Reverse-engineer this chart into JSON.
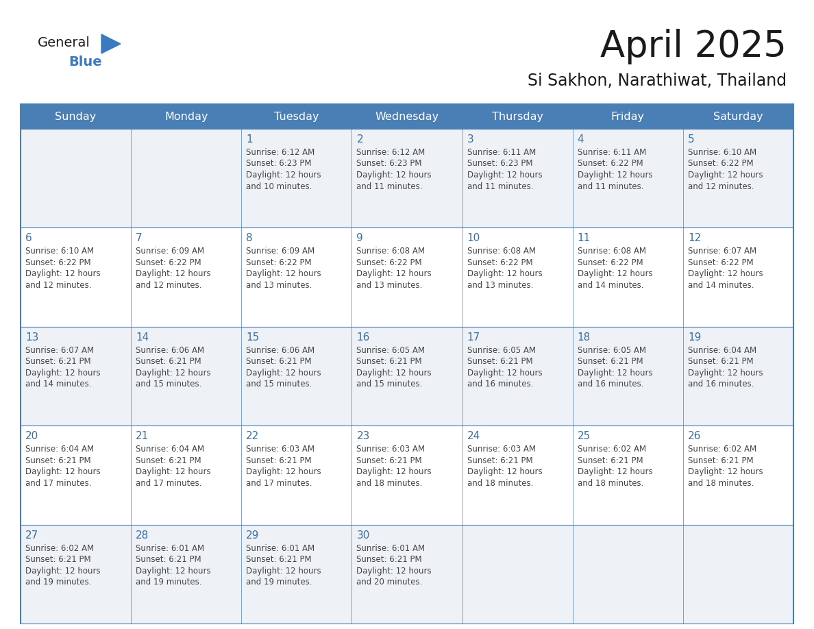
{
  "title": "April 2025",
  "subtitle": "Si Sakhon, Narathiwat, Thailand",
  "header_bg": "#4a7fb5",
  "header_text_color": "#ffffff",
  "cell_bg_odd": "#eef2f7",
  "cell_bg_even": "#ffffff",
  "day_number_color": "#3a6fa0",
  "cell_text_color": "#444444",
  "border_color": "#4a7fb5",
  "line_color": "#4a7fb5",
  "days_of_week": [
    "Sunday",
    "Monday",
    "Tuesday",
    "Wednesday",
    "Thursday",
    "Friday",
    "Saturday"
  ],
  "logo_general_color": "#1a1a1a",
  "logo_blue_color": "#3a7abf",
  "logo_triangle_color": "#3a7abf",
  "weeks": [
    [
      {
        "day": "",
        "lines": []
      },
      {
        "day": "",
        "lines": []
      },
      {
        "day": "1",
        "lines": [
          "Sunrise: 6:12 AM",
          "Sunset: 6:23 PM",
          "Daylight: 12 hours",
          "and 10 minutes."
        ]
      },
      {
        "day": "2",
        "lines": [
          "Sunrise: 6:12 AM",
          "Sunset: 6:23 PM",
          "Daylight: 12 hours",
          "and 11 minutes."
        ]
      },
      {
        "day": "3",
        "lines": [
          "Sunrise: 6:11 AM",
          "Sunset: 6:23 PM",
          "Daylight: 12 hours",
          "and 11 minutes."
        ]
      },
      {
        "day": "4",
        "lines": [
          "Sunrise: 6:11 AM",
          "Sunset: 6:22 PM",
          "Daylight: 12 hours",
          "and 11 minutes."
        ]
      },
      {
        "day": "5",
        "lines": [
          "Sunrise: 6:10 AM",
          "Sunset: 6:22 PM",
          "Daylight: 12 hours",
          "and 12 minutes."
        ]
      }
    ],
    [
      {
        "day": "6",
        "lines": [
          "Sunrise: 6:10 AM",
          "Sunset: 6:22 PM",
          "Daylight: 12 hours",
          "and 12 minutes."
        ]
      },
      {
        "day": "7",
        "lines": [
          "Sunrise: 6:09 AM",
          "Sunset: 6:22 PM",
          "Daylight: 12 hours",
          "and 12 minutes."
        ]
      },
      {
        "day": "8",
        "lines": [
          "Sunrise: 6:09 AM",
          "Sunset: 6:22 PM",
          "Daylight: 12 hours",
          "and 13 minutes."
        ]
      },
      {
        "day": "9",
        "lines": [
          "Sunrise: 6:08 AM",
          "Sunset: 6:22 PM",
          "Daylight: 12 hours",
          "and 13 minutes."
        ]
      },
      {
        "day": "10",
        "lines": [
          "Sunrise: 6:08 AM",
          "Sunset: 6:22 PM",
          "Daylight: 12 hours",
          "and 13 minutes."
        ]
      },
      {
        "day": "11",
        "lines": [
          "Sunrise: 6:08 AM",
          "Sunset: 6:22 PM",
          "Daylight: 12 hours",
          "and 14 minutes."
        ]
      },
      {
        "day": "12",
        "lines": [
          "Sunrise: 6:07 AM",
          "Sunset: 6:22 PM",
          "Daylight: 12 hours",
          "and 14 minutes."
        ]
      }
    ],
    [
      {
        "day": "13",
        "lines": [
          "Sunrise: 6:07 AM",
          "Sunset: 6:21 PM",
          "Daylight: 12 hours",
          "and 14 minutes."
        ]
      },
      {
        "day": "14",
        "lines": [
          "Sunrise: 6:06 AM",
          "Sunset: 6:21 PM",
          "Daylight: 12 hours",
          "and 15 minutes."
        ]
      },
      {
        "day": "15",
        "lines": [
          "Sunrise: 6:06 AM",
          "Sunset: 6:21 PM",
          "Daylight: 12 hours",
          "and 15 minutes."
        ]
      },
      {
        "day": "16",
        "lines": [
          "Sunrise: 6:05 AM",
          "Sunset: 6:21 PM",
          "Daylight: 12 hours",
          "and 15 minutes."
        ]
      },
      {
        "day": "17",
        "lines": [
          "Sunrise: 6:05 AM",
          "Sunset: 6:21 PM",
          "Daylight: 12 hours",
          "and 16 minutes."
        ]
      },
      {
        "day": "18",
        "lines": [
          "Sunrise: 6:05 AM",
          "Sunset: 6:21 PM",
          "Daylight: 12 hours",
          "and 16 minutes."
        ]
      },
      {
        "day": "19",
        "lines": [
          "Sunrise: 6:04 AM",
          "Sunset: 6:21 PM",
          "Daylight: 12 hours",
          "and 16 minutes."
        ]
      }
    ],
    [
      {
        "day": "20",
        "lines": [
          "Sunrise: 6:04 AM",
          "Sunset: 6:21 PM",
          "Daylight: 12 hours",
          "and 17 minutes."
        ]
      },
      {
        "day": "21",
        "lines": [
          "Sunrise: 6:04 AM",
          "Sunset: 6:21 PM",
          "Daylight: 12 hours",
          "and 17 minutes."
        ]
      },
      {
        "day": "22",
        "lines": [
          "Sunrise: 6:03 AM",
          "Sunset: 6:21 PM",
          "Daylight: 12 hours",
          "and 17 minutes."
        ]
      },
      {
        "day": "23",
        "lines": [
          "Sunrise: 6:03 AM",
          "Sunset: 6:21 PM",
          "Daylight: 12 hours",
          "and 18 minutes."
        ]
      },
      {
        "day": "24",
        "lines": [
          "Sunrise: 6:03 AM",
          "Sunset: 6:21 PM",
          "Daylight: 12 hours",
          "and 18 minutes."
        ]
      },
      {
        "day": "25",
        "lines": [
          "Sunrise: 6:02 AM",
          "Sunset: 6:21 PM",
          "Daylight: 12 hours",
          "and 18 minutes."
        ]
      },
      {
        "day": "26",
        "lines": [
          "Sunrise: 6:02 AM",
          "Sunset: 6:21 PM",
          "Daylight: 12 hours",
          "and 18 minutes."
        ]
      }
    ],
    [
      {
        "day": "27",
        "lines": [
          "Sunrise: 6:02 AM",
          "Sunset: 6:21 PM",
          "Daylight: 12 hours",
          "and 19 minutes."
        ]
      },
      {
        "day": "28",
        "lines": [
          "Sunrise: 6:01 AM",
          "Sunset: 6:21 PM",
          "Daylight: 12 hours",
          "and 19 minutes."
        ]
      },
      {
        "day": "29",
        "lines": [
          "Sunrise: 6:01 AM",
          "Sunset: 6:21 PM",
          "Daylight: 12 hours",
          "and 19 minutes."
        ]
      },
      {
        "day": "30",
        "lines": [
          "Sunrise: 6:01 AM",
          "Sunset: 6:21 PM",
          "Daylight: 12 hours",
          "and 20 minutes."
        ]
      },
      {
        "day": "",
        "lines": []
      },
      {
        "day": "",
        "lines": []
      },
      {
        "day": "",
        "lines": []
      }
    ]
  ]
}
